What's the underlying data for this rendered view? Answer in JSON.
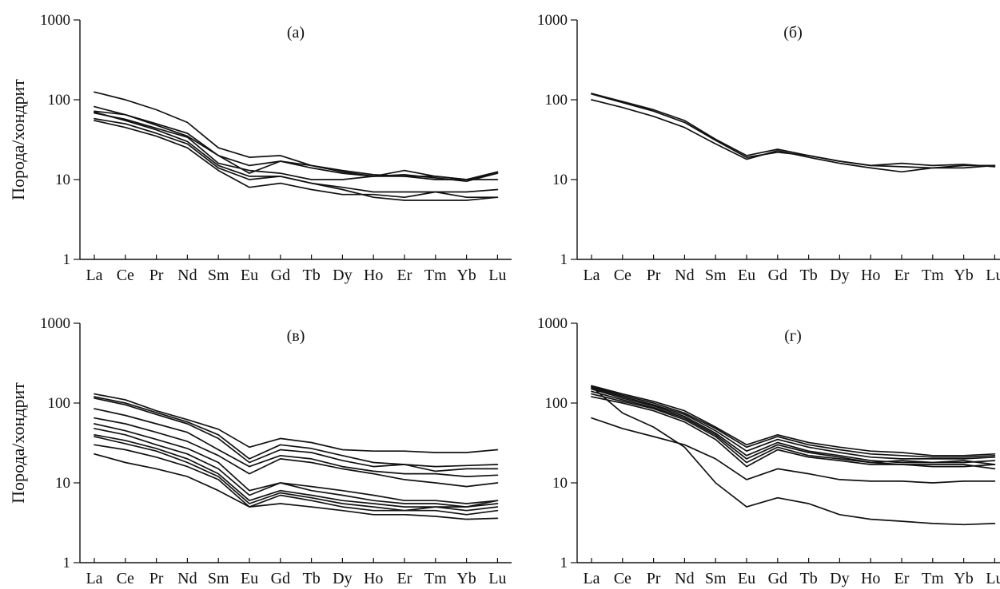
{
  "chart_data": [
    {
      "type": "line",
      "title": "(а)",
      "ylabel": "Порода/хондрит",
      "yscale": "log",
      "ylim": [
        1,
        1000
      ],
      "yticks": [
        "1",
        "10",
        "100",
        "1000"
      ],
      "categories": [
        "La",
        "Ce",
        "Pr",
        "Nd",
        "Sm",
        "Eu",
        "Gd",
        "Tb",
        "Dy",
        "Ho",
        "Er",
        "Tm",
        "Yb",
        "Lu"
      ],
      "series": [
        {
          "values": [
            125,
            100,
            75,
            52,
            25,
            19,
            20,
            15,
            12.5,
            11,
            13,
            11,
            10,
            12
          ]
        },
        {
          "values": [
            82,
            65,
            50,
            38,
            20,
            15,
            17,
            15,
            13,
            11.5,
            11,
            11,
            10,
            12.5
          ]
        },
        {
          "values": [
            72,
            65,
            48,
            35,
            20,
            12,
            17,
            14,
            12,
            11,
            11.5,
            10.5,
            9.5,
            12
          ]
        },
        {
          "values": [
            68,
            57,
            44,
            34,
            16,
            13,
            12,
            10,
            10,
            11,
            11,
            10,
            10,
            10
          ]
        },
        {
          "values": [
            58,
            50,
            38,
            28,
            14,
            10,
            11,
            9,
            8,
            7,
            7,
            7,
            7,
            7.5
          ]
        },
        {
          "values": [
            55,
            45,
            35,
            25,
            13,
            8,
            9,
            7.5,
            6.5,
            6.5,
            6,
            7,
            6,
            6
          ]
        },
        {
          "values": [
            70,
            55,
            42,
            30,
            15,
            11,
            11,
            9,
            7.5,
            6,
            5.5,
            5.5,
            5.5,
            6
          ]
        }
      ]
    },
    {
      "type": "line",
      "title": "(б)",
      "ylabel": "",
      "yscale": "log",
      "ylim": [
        1,
        1000
      ],
      "yticks": [
        "1",
        "10",
        "100",
        "1000"
      ],
      "categories": [
        "La",
        "Ce",
        "Pr",
        "Nd",
        "Sm",
        "Eu",
        "Gd",
        "Tb",
        "Dy",
        "Ho",
        "Er",
        "Tm",
        "Yb",
        "Lu"
      ],
      "series": [
        {
          "values": [
            120,
            95,
            75,
            55,
            32,
            20,
            24,
            20,
            17,
            15,
            14.5,
            14,
            15,
            15
          ]
        },
        {
          "values": [
            100,
            80,
            62,
            45,
            28,
            18,
            23,
            19,
            16,
            14,
            12.5,
            14,
            14,
            15
          ]
        },
        {
          "values": [
            118,
            92,
            72,
            52,
            31,
            19,
            22,
            20,
            17,
            15,
            16,
            15,
            15.5,
            14.5
          ]
        }
      ]
    },
    {
      "type": "line",
      "title": "(в)",
      "ylabel": "Порода/хондрит",
      "yscale": "log",
      "ylim": [
        1,
        1000
      ],
      "yticks": [
        "1",
        "10",
        "100",
        "1000"
      ],
      "categories": [
        "La",
        "Ce",
        "Pr",
        "Nd",
        "Sm",
        "Eu",
        "Gd",
        "Tb",
        "Dy",
        "Ho",
        "Er",
        "Tm",
        "Yb",
        "Lu"
      ],
      "series": [
        {
          "values": [
            130,
            110,
            80,
            62,
            47,
            28,
            36,
            32,
            26,
            25,
            25,
            24,
            24,
            26
          ]
        },
        {
          "values": [
            120,
            100,
            76,
            58,
            40,
            20,
            30,
            27,
            22,
            18,
            17,
            16,
            16.5,
            17
          ]
        },
        {
          "values": [
            115,
            95,
            72,
            55,
            36,
            18,
            26,
            24,
            19,
            16,
            17,
            14,
            15,
            15
          ]
        },
        {
          "values": [
            85,
            70,
            55,
            43,
            26,
            16,
            22,
            20,
            16,
            14,
            13,
            13,
            12,
            12.5
          ]
        },
        {
          "values": [
            65,
            55,
            43,
            33,
            22,
            13,
            20,
            18,
            15,
            13,
            11,
            10,
            9,
            10
          ]
        },
        {
          "values": [
            55,
            45,
            35,
            27,
            18,
            8,
            10,
            9,
            8,
            7,
            6,
            6,
            5.5,
            6
          ]
        },
        {
          "values": [
            48,
            40,
            30,
            23,
            15,
            7,
            10,
            8,
            7,
            6,
            5.5,
            5.5,
            5,
            6
          ]
        },
        {
          "values": [
            40,
            34,
            27,
            20,
            13,
            6,
            8,
            7,
            6,
            5.5,
            5,
            5,
            5,
            5.5
          ]
        },
        {
          "values": [
            38,
            31,
            25,
            18,
            12,
            5.5,
            7.5,
            6.5,
            5.5,
            5,
            4.5,
            5,
            4.5,
            5
          ]
        },
        {
          "values": [
            30,
            26,
            21,
            16,
            11,
            5,
            7,
            6,
            5,
            4.5,
            4.5,
            4.5,
            4,
            4.5
          ]
        },
        {
          "values": [
            23,
            18,
            15,
            12,
            8,
            5,
            5.5,
            5,
            4.5,
            4,
            4,
            3.8,
            3.5,
            3.6
          ]
        }
      ]
    },
    {
      "type": "line",
      "title": "(г)",
      "ylabel": "",
      "yscale": "log",
      "ylim": [
        1,
        1000
      ],
      "yticks": [
        "1",
        "10",
        "100",
        "1000"
      ],
      "categories": [
        "La",
        "Ce",
        "Pr",
        "Nd",
        "Sm",
        "Eu",
        "Gd",
        "Tb",
        "Dy",
        "Ho",
        "Er",
        "Tm",
        "Yb",
        "Lu"
      ],
      "series": [
        {
          "values": [
            165,
            130,
            105,
            80,
            50,
            30,
            40,
            32,
            28,
            25,
            24,
            22,
            22,
            23
          ]
        },
        {
          "values": [
            160,
            125,
            100,
            75,
            48,
            28,
            38,
            30,
            26,
            23,
            22,
            21,
            21,
            22
          ]
        },
        {
          "values": [
            155,
            120,
            95,
            72,
            45,
            25,
            35,
            28,
            24,
            21,
            20,
            20,
            20,
            21
          ]
        },
        {
          "values": [
            150,
            115,
            92,
            68,
            42,
            22,
            32,
            25,
            22,
            19,
            18,
            18,
            18,
            19
          ]
        },
        {
          "values": [
            140,
            110,
            88,
            65,
            40,
            20,
            30,
            24,
            21,
            18,
            19,
            18,
            19,
            17
          ]
        },
        {
          "values": [
            130,
            105,
            85,
            62,
            38,
            18,
            28,
            22,
            20,
            18,
            17,
            17,
            17,
            15
          ]
        },
        {
          "values": [
            120,
            100,
            80,
            58,
            35,
            16,
            26,
            21,
            19,
            17,
            17,
            16,
            16,
            17
          ]
        },
        {
          "values": [
            65,
            48,
            38,
            30,
            20,
            11,
            15,
            13,
            11,
            10.5,
            10.5,
            10,
            10.5,
            10.5
          ]
        },
        {
          "values": [
            160,
            75,
            50,
            28,
            10,
            5,
            6.5,
            5.5,
            4,
            3.5,
            3.3,
            3.1,
            3,
            3.1
          ]
        }
      ]
    }
  ]
}
